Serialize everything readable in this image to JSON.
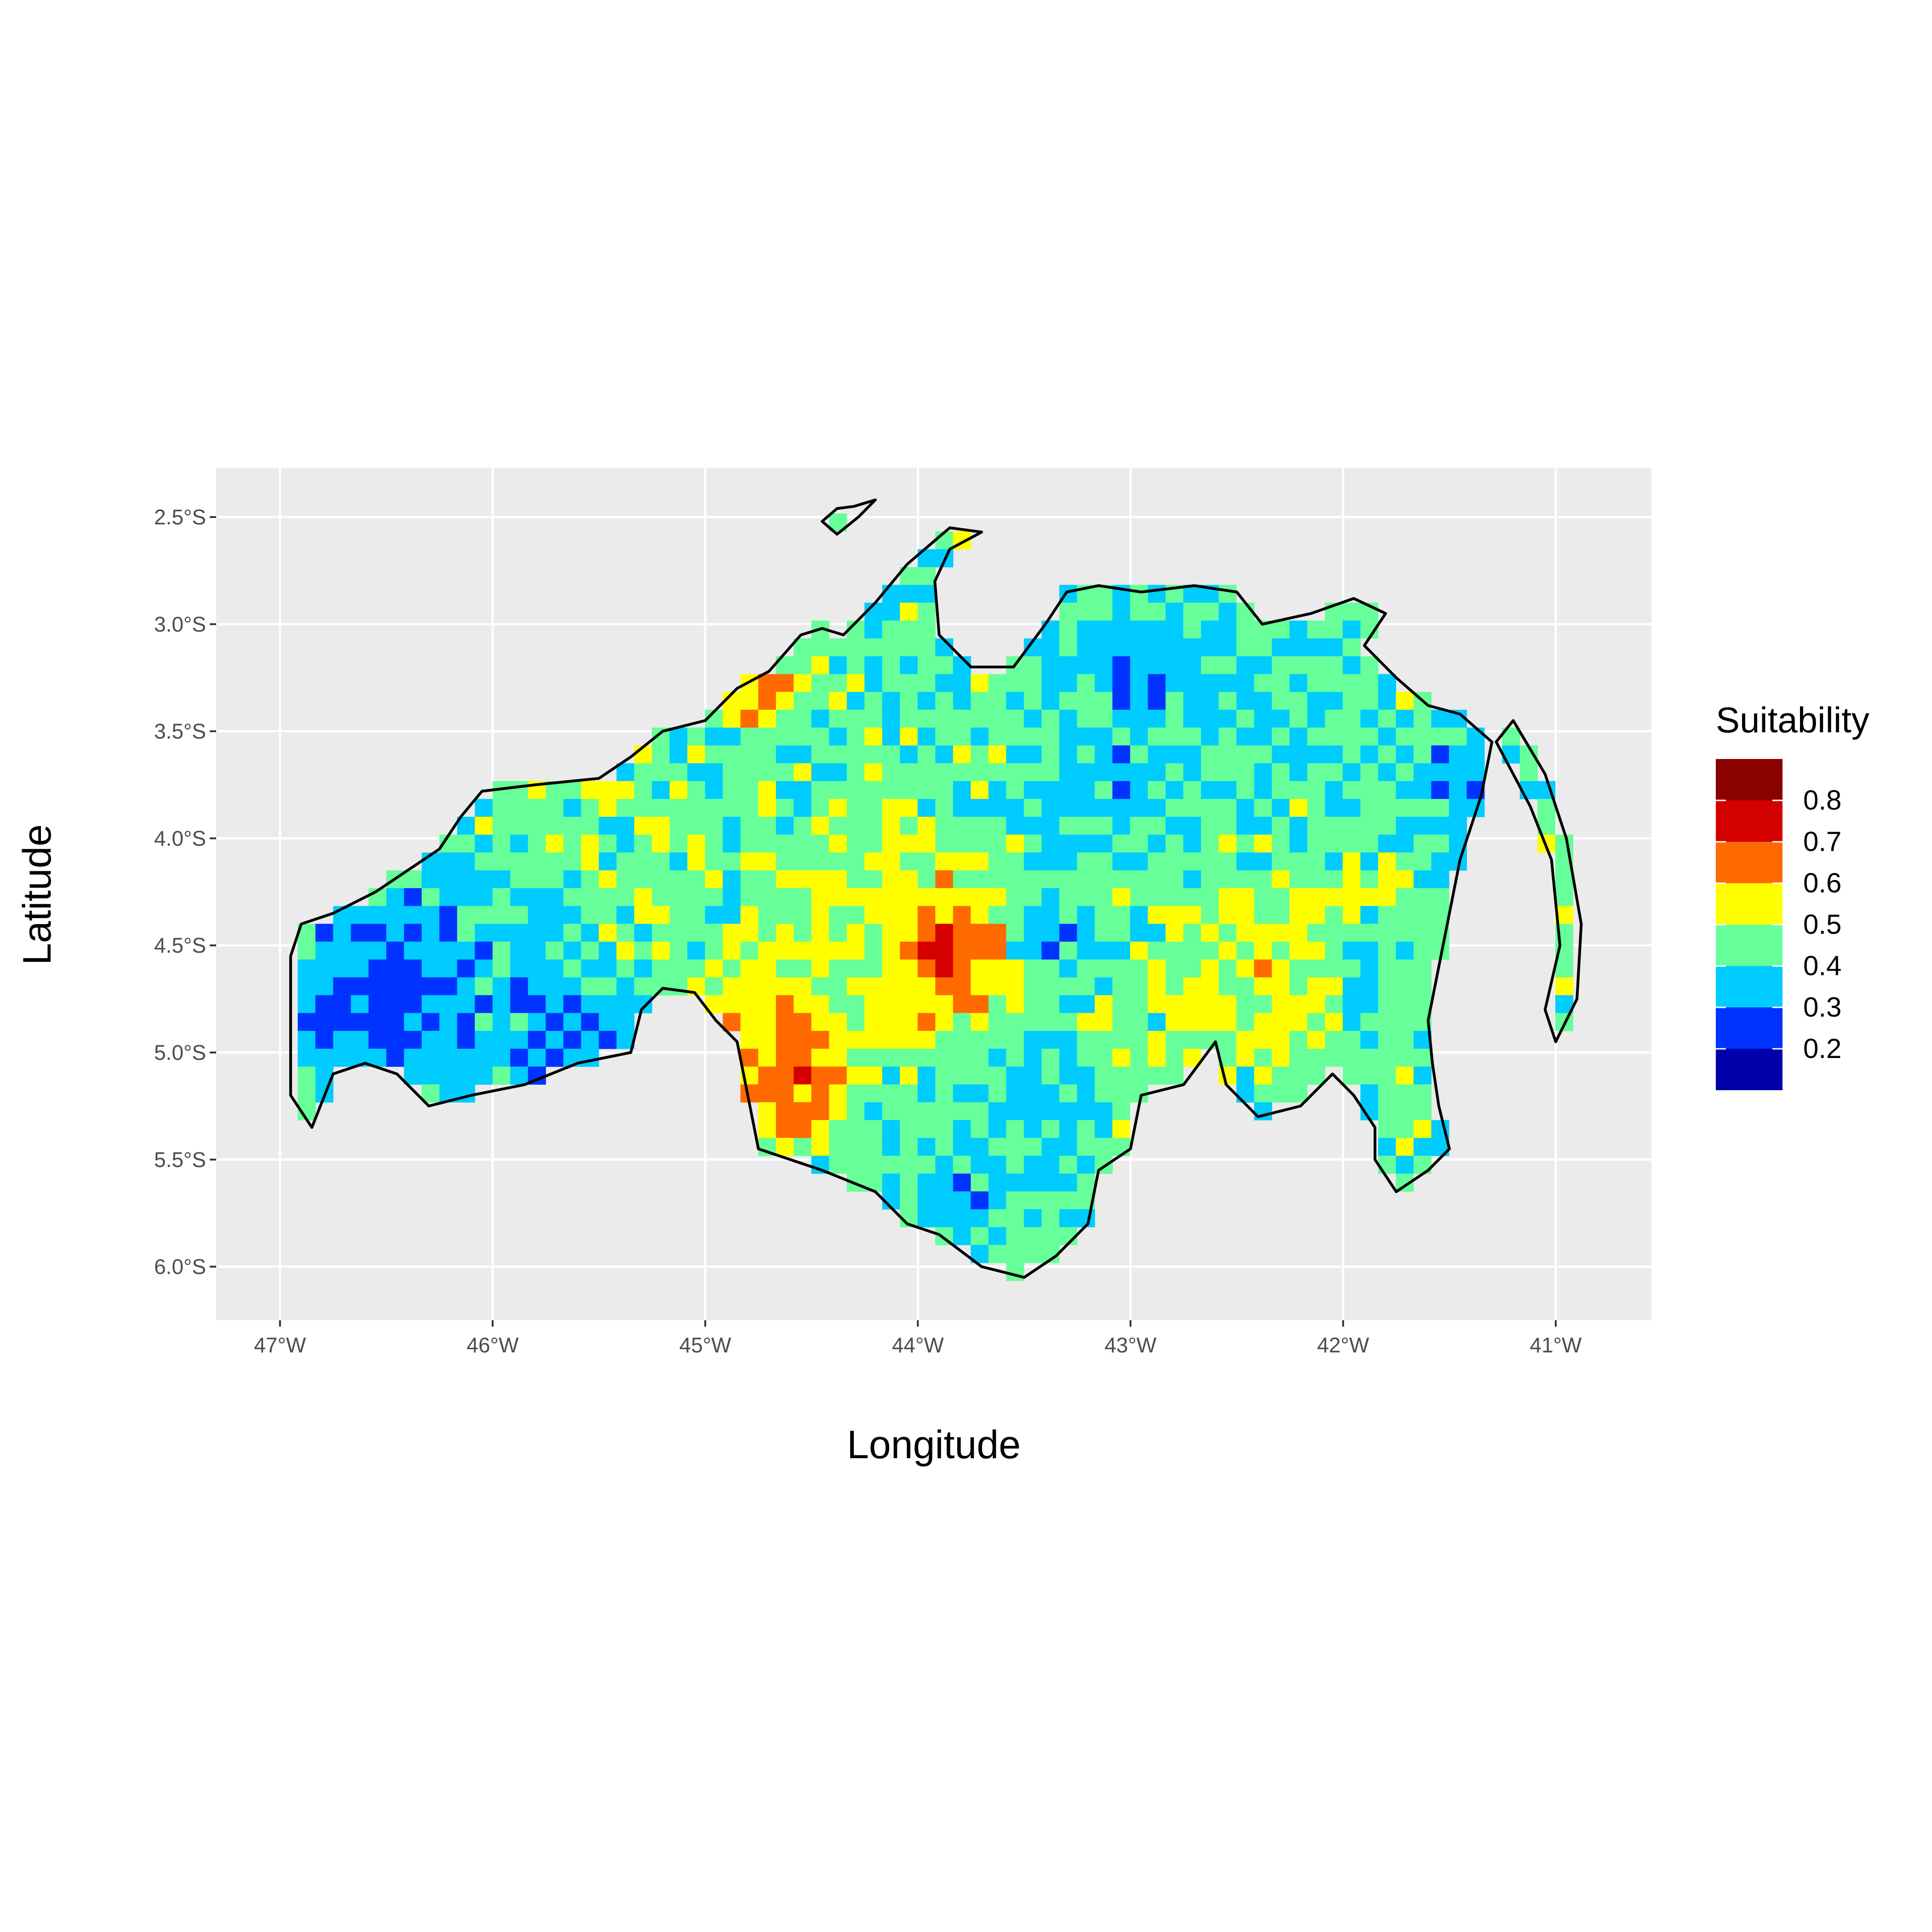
{
  "chart_data": {
    "type": "heatmap",
    "title": "",
    "xlabel": "Longitude",
    "ylabel": "Latitude",
    "x_ticks": [
      {
        "value": -47,
        "label": "47°W"
      },
      {
        "value": -46,
        "label": "46°W"
      },
      {
        "value": -45,
        "label": "45°W"
      },
      {
        "value": -44,
        "label": "44°W"
      },
      {
        "value": -43,
        "label": "43°W"
      },
      {
        "value": -42,
        "label": "42°W"
      },
      {
        "value": -41,
        "label": "41°W"
      }
    ],
    "y_ticks": [
      {
        "value": -2.5,
        "label": "2.5°S"
      },
      {
        "value": -3.0,
        "label": "3.0°S"
      },
      {
        "value": -3.5,
        "label": "3.5°S"
      },
      {
        "value": -4.0,
        "label": "4.0°S"
      },
      {
        "value": -4.5,
        "label": "4.5°S"
      },
      {
        "value": -5.0,
        "label": "5.0°S"
      },
      {
        "value": -5.5,
        "label": "5.5°S"
      },
      {
        "value": -6.0,
        "label": "6.0°S"
      }
    ],
    "xlim": [
      -47.3,
      -40.55
    ],
    "ylim": [
      -6.25,
      -2.27
    ],
    "grid": true,
    "panel_background": "#ebebeb",
    "grid_color": "#ffffff",
    "legend": {
      "title": "Suitability",
      "placement": "right",
      "breaks": [
        0.8,
        0.7,
        0.6,
        0.5,
        0.4,
        0.3,
        0.2
      ],
      "bins": [
        {
          "max": 0.85,
          "color": "#8b0000"
        },
        {
          "max": 0.75,
          "color": "#d40000"
        },
        {
          "max": 0.65,
          "color": "#ff6a00"
        },
        {
          "max": 0.55,
          "color": "#ffff00"
        },
        {
          "max": 0.45,
          "color": "#66ff99"
        },
        {
          "max": 0.35,
          "color": "#00ccff"
        },
        {
          "max": 0.25,
          "color": "#0033ff"
        },
        {
          "max": 0.15,
          "color": "#0000aa"
        }
      ]
    },
    "cell_size_deg": 0.0833,
    "regions": [
      {
        "lon": -46.6,
        "lat": -4.8,
        "r": 0.25,
        "value": 0.18
      },
      {
        "lon": -46.2,
        "lat": -4.6,
        "r": 0.45,
        "value": 0.26
      },
      {
        "lon": -45.6,
        "lat": -4.9,
        "r": 0.2,
        "value": 0.22
      },
      {
        "lon": -43.0,
        "lat": -3.35,
        "r": 0.12,
        "value": 0.17
      },
      {
        "lon": -43.0,
        "lat": -3.45,
        "r": 0.4,
        "value": 0.28
      },
      {
        "lon": -43.35,
        "lat": -4.5,
        "r": 0.18,
        "value": 0.27
      },
      {
        "lon": -41.4,
        "lat": -3.8,
        "r": 0.25,
        "value": 0.28
      },
      {
        "lon": -41.9,
        "lat": -4.65,
        "r": 0.2,
        "value": 0.3
      },
      {
        "lon": -43.9,
        "lat": -5.75,
        "r": 0.25,
        "value": 0.29
      },
      {
        "lon": -43.4,
        "lat": -5.2,
        "r": 0.22,
        "value": 0.29
      },
      {
        "lon": -44.6,
        "lat": -5.1,
        "r": 0.2,
        "value": 0.72
      },
      {
        "lon": -43.88,
        "lat": -4.5,
        "r": 0.1,
        "value": 0.82
      },
      {
        "lon": -43.9,
        "lat": -4.55,
        "r": 0.28,
        "value": 0.62
      },
      {
        "lon": -44.75,
        "lat": -4.85,
        "r": 0.3,
        "value": 0.52
      },
      {
        "lon": -44.2,
        "lat": -4.3,
        "r": 0.3,
        "value": 0.5
      },
      {
        "lon": -42.3,
        "lat": -4.5,
        "r": 0.35,
        "value": 0.52
      },
      {
        "lon": -44.75,
        "lat": -3.3,
        "r": 0.12,
        "value": 0.66
      },
      {
        "lon": -45.5,
        "lat": -4.0,
        "r": 0.5,
        "value": 0.42
      },
      {
        "lon": -43.7,
        "lat": -3.3,
        "r": 0.4,
        "value": 0.4
      },
      {
        "lon": -42.5,
        "lat": -3.9,
        "r": 0.4,
        "value": 0.37
      },
      {
        "lon": -41.0,
        "lat": -4.3,
        "r": 0.3,
        "value": 0.46
      },
      {
        "lon": -42.8,
        "lat": -5.0,
        "r": 0.4,
        "value": 0.42
      },
      {
        "lon": -44.3,
        "lat": -2.55,
        "r": 0.1,
        "value": 0.45
      }
    ],
    "base_value": 0.38,
    "outline_color": "#000000"
  }
}
